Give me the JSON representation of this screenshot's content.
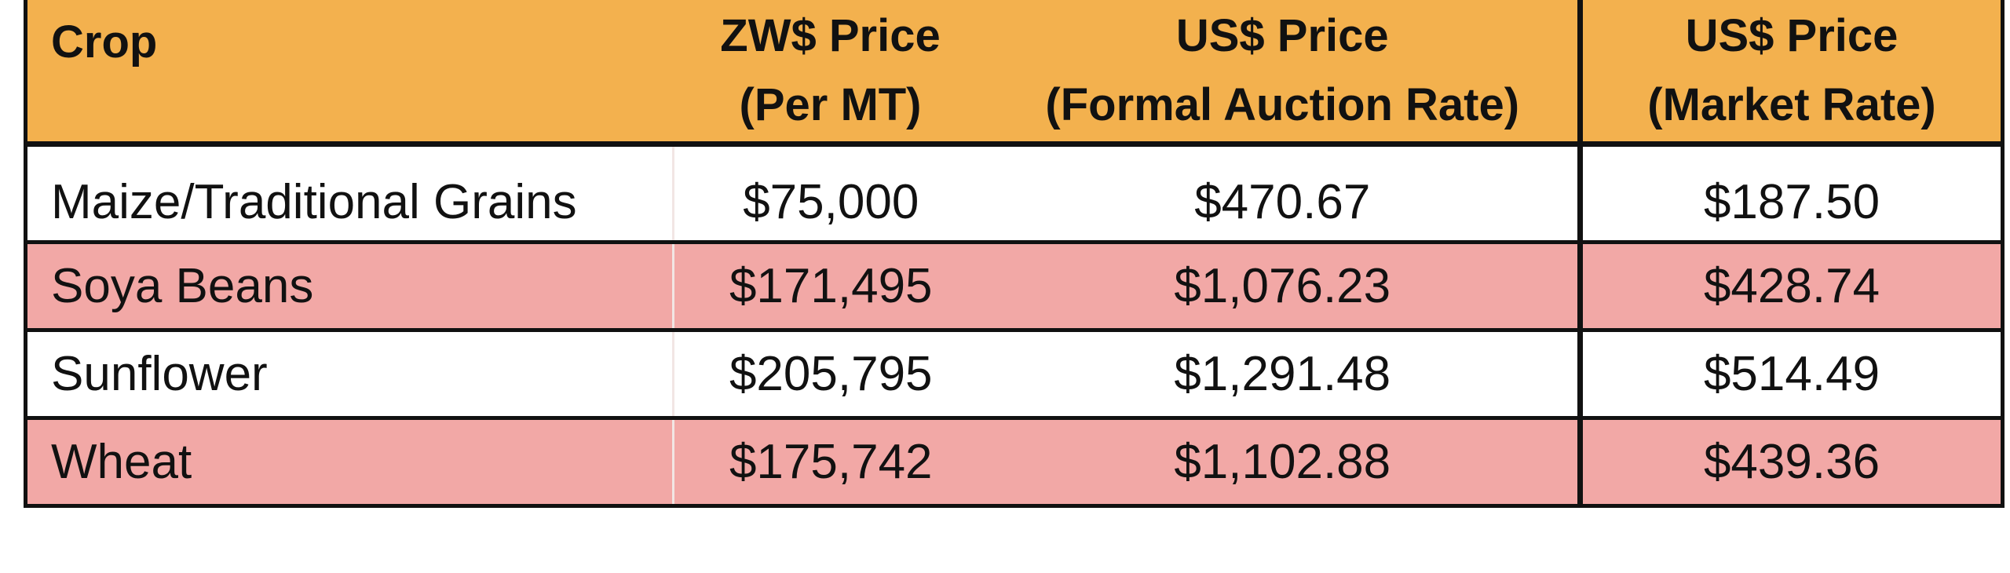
{
  "table": {
    "headers": {
      "crop": "Crop",
      "zw_price": [
        "ZW$ Price",
        "(Per MT)"
      ],
      "us_formal": [
        "US$ Price",
        "(Formal Auction Rate)"
      ],
      "us_market": [
        "US$ Price",
        "(Market Rate)"
      ]
    },
    "rows": [
      {
        "crop": "Maize/Traditional Grains",
        "zw": "$75,000",
        "formal": "$470.67",
        "market": "$187.50"
      },
      {
        "crop": "Soya Beans",
        "zw": "$171,495",
        "formal": "$1,076.23",
        "market": "$428.74"
      },
      {
        "crop": "Sunflower",
        "zw": "$205,795",
        "formal": "$1,291.48",
        "market": "$514.49"
      },
      {
        "crop": "Wheat",
        "zw": "$175,742",
        "formal": "$1,102.88",
        "market": "$439.36"
      }
    ]
  },
  "colors": {
    "header_bg": "#F3B14E",
    "alt_row_bg": "#F2A8A6",
    "row_bg": "#FFFFFF",
    "border": "#111111"
  }
}
